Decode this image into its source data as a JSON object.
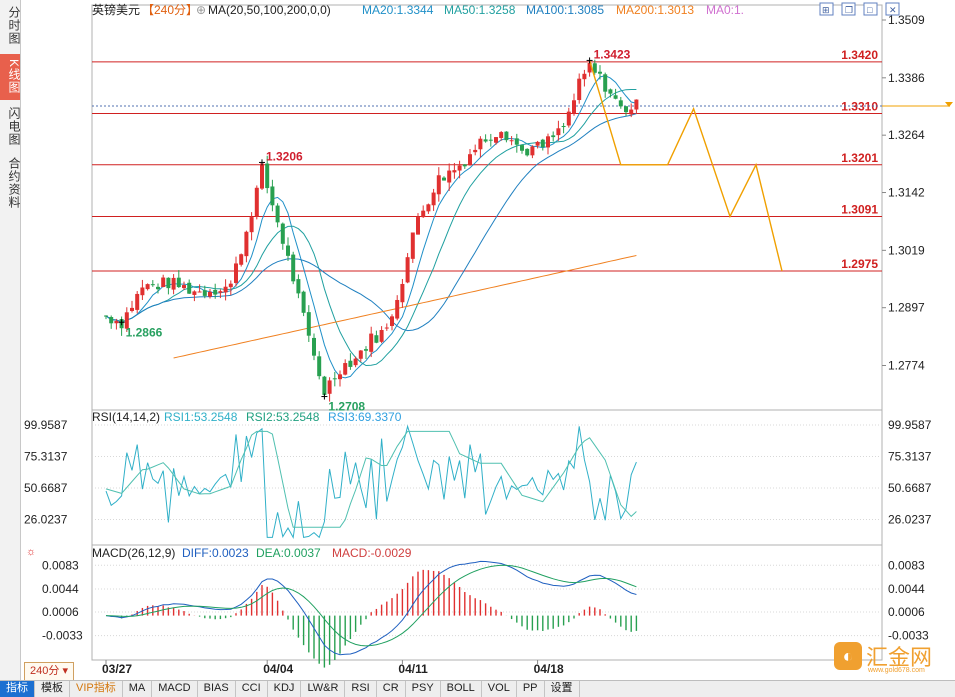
{
  "sidebar": {
    "tabs": [
      {
        "label": "分时图",
        "active": false
      },
      {
        "label": "K线图",
        "active": true
      },
      {
        "label": "闪电图",
        "active": false
      },
      {
        "label": "合约资料",
        "active": false
      }
    ]
  },
  "header": {
    "symbol": "英镑美元",
    "period": "【240分】",
    "ma_label": "MA(20,50,100,200,0,0)",
    "ma20": "MA20:1.3344",
    "ma50": "MA50:1.3258",
    "ma100": "MA100:1.3085",
    "ma200": "MA200:1.3013",
    "ma0": "MA0:1."
  },
  "rsi_header": {
    "label": "RSI(14,14,2)",
    "rsi1": "RSI1:53.2548",
    "rsi2": "RSI2:53.2548",
    "rsi3": "RSI3:69.3370"
  },
  "macd_header": {
    "label": "MACD(26,12,9)",
    "diff": "DIFF:0.0023",
    "dea": "DEA:0.0037",
    "macd": "MACD:-0.0029"
  },
  "colors": {
    "up": "#e03030",
    "down": "#28a050",
    "ma20": "#2090c8",
    "ma50": "#20a0a0",
    "ma100": "#2080c0",
    "ma200": "#f08020",
    "level": "#d02020",
    "forecast": "#f0a000",
    "rsi": "#30b0c8",
    "macd_diff": "#2060c0",
    "macd_dea": "#20a060"
  },
  "chart_data": {
    "type": "candlestick",
    "price_axis": {
      "ticks": [
        "1.3509",
        "1.3386",
        "1.3264",
        "1.3142",
        "1.3019",
        "1.2897",
        "1.2774"
      ],
      "range": [
        1.269,
        1.3509
      ]
    },
    "rsi_axis": {
      "ticks": [
        "99.9587",
        "75.3137",
        "50.6687",
        "26.0237"
      ],
      "range": [
        10,
        100
      ]
    },
    "macd_axis": {
      "ticks": [
        "0.0083",
        "0.0044",
        "0.0006",
        "-0.0033"
      ],
      "range": [
        -0.0065,
        0.01
      ]
    },
    "date_labels": [
      {
        "label": "03/27",
        "index": 0
      },
      {
        "label": "04/04",
        "index": 31
      },
      {
        "label": "04/11",
        "index": 57
      },
      {
        "label": "04/18",
        "index": 83
      }
    ],
    "horizontal_levels": [
      {
        "label": "1.3420",
        "value": 1.342
      },
      {
        "label": "1.3310",
        "value": 1.331
      },
      {
        "label": "1.3201",
        "value": 1.3201
      },
      {
        "label": "1.3091",
        "value": 1.3091
      },
      {
        "label": "1.2975",
        "value": 1.2975
      }
    ],
    "current_price": 1.3326,
    "annotations": [
      {
        "label": "1.2866",
        "index": 3,
        "value": 1.2866
      },
      {
        "label": "1.3206",
        "index": 30,
        "value": 1.3206
      },
      {
        "label": "1.2708",
        "index": 42,
        "value": 1.2708
      },
      {
        "label": "1.3423",
        "index": 93,
        "value": 1.3423
      }
    ],
    "forecast_path": [
      {
        "index": 93,
        "value": 1.3423
      },
      {
        "index": 99,
        "value": 1.3201
      },
      {
        "index": 108,
        "value": 1.3201
      },
      {
        "index": 113,
        "value": 1.332
      },
      {
        "index": 120,
        "value": 1.3091
      },
      {
        "index": 125,
        "value": 1.3201
      },
      {
        "index": 130,
        "value": 1.2975
      }
    ]
  }
}
